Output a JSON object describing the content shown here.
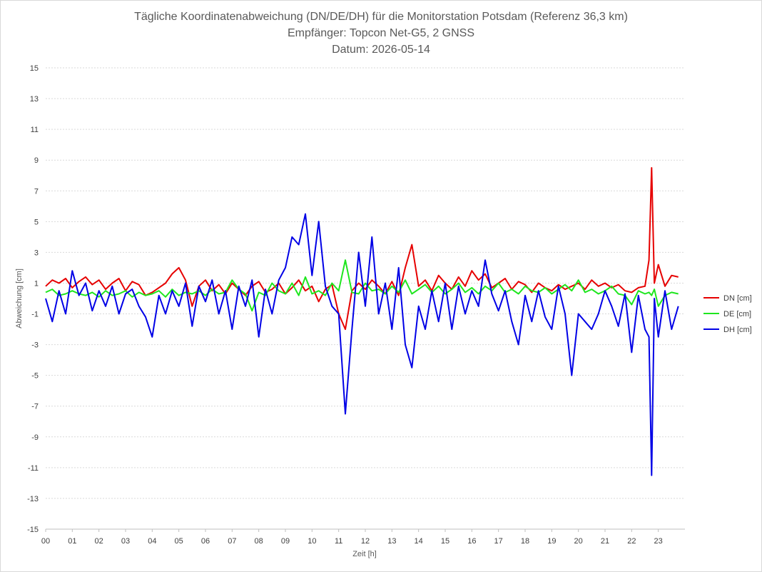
{
  "chart_data": {
    "type": "line",
    "title": "Tägliche Koordinatenabweichung (DN/DE/DH) für die Monitorstation Potsdam (Referenz 36,3 km)",
    "subtitle": "Empfänger: Topcon Net-G5, 2 GNSS",
    "date_line": "Datum: 2026-05-14",
    "xlabel": "Zeit [h]",
    "ylabel": "Abweichung [cm]",
    "xlim": [
      0,
      24
    ],
    "ylim": [
      -15,
      15
    ],
    "x_ticks": [
      "00",
      "01",
      "02",
      "03",
      "04",
      "05",
      "06",
      "07",
      "08",
      "09",
      "10",
      "11",
      "12",
      "13",
      "14",
      "15",
      "16",
      "17",
      "18",
      "19",
      "20",
      "21",
      "22",
      "23"
    ],
    "y_ticks": [
      15,
      13,
      11,
      9,
      7,
      5,
      3,
      1,
      -1,
      -3,
      -5,
      -7,
      -9,
      -11,
      -13,
      -15
    ],
    "grid": true,
    "legend_position": "right",
    "x": [
      0.0,
      0.25,
      0.5,
      0.75,
      1.0,
      1.25,
      1.5,
      1.75,
      2.0,
      2.25,
      2.5,
      2.75,
      3.0,
      3.25,
      3.5,
      3.75,
      4.0,
      4.25,
      4.5,
      4.75,
      5.0,
      5.25,
      5.5,
      5.75,
      6.0,
      6.25,
      6.5,
      6.75,
      7.0,
      7.25,
      7.5,
      7.75,
      8.0,
      8.25,
      8.5,
      8.75,
      9.0,
      9.25,
      9.5,
      9.75,
      10.0,
      10.25,
      10.5,
      10.75,
      11.0,
      11.25,
      11.5,
      11.75,
      12.0,
      12.25,
      12.5,
      12.75,
      13.0,
      13.25,
      13.5,
      13.75,
      14.0,
      14.25,
      14.5,
      14.75,
      15.0,
      15.25,
      15.5,
      15.75,
      16.0,
      16.25,
      16.5,
      16.75,
      17.0,
      17.25,
      17.5,
      17.75,
      18.0,
      18.25,
      18.5,
      18.75,
      19.0,
      19.25,
      19.5,
      19.75,
      20.0,
      20.25,
      20.5,
      20.75,
      21.0,
      21.25,
      21.5,
      21.75,
      22.0,
      22.25,
      22.5,
      22.65,
      22.75,
      22.85,
      23.0,
      23.25,
      23.5,
      23.75
    ],
    "series": [
      {
        "name": "DN [cm]",
        "color": "#e60000",
        "values": [
          0.8,
          1.2,
          1.0,
          1.3,
          0.7,
          1.1,
          1.4,
          0.9,
          1.2,
          0.6,
          1.0,
          1.3,
          0.5,
          1.1,
          0.9,
          0.2,
          0.4,
          0.7,
          1.0,
          1.6,
          2.0,
          1.2,
          -0.5,
          0.8,
          1.2,
          0.5,
          0.9,
          0.3,
          1.0,
          0.6,
          0.2,
          0.8,
          1.1,
          0.4,
          0.6,
          1.0,
          0.3,
          0.7,
          1.2,
          0.5,
          0.8,
          -0.2,
          0.6,
          0.9,
          -1.0,
          -2.0,
          0.5,
          1.0,
          0.6,
          1.2,
          0.8,
          0.3,
          1.1,
          0.2,
          2.0,
          3.5,
          0.8,
          1.2,
          0.5,
          1.5,
          1.0,
          0.6,
          1.4,
          0.8,
          1.8,
          1.2,
          1.6,
          0.7,
          1.0,
          1.3,
          0.6,
          1.1,
          0.9,
          0.4,
          1.0,
          0.7,
          0.5,
          0.9,
          0.6,
          0.8,
          1.0,
          0.6,
          1.2,
          0.8,
          1.0,
          0.7,
          0.9,
          0.5,
          0.4,
          0.7,
          0.8,
          2.5,
          8.5,
          1.0,
          2.2,
          0.8,
          1.5,
          1.4
        ]
      },
      {
        "name": "DE [cm]",
        "color": "#1ee61e",
        "values": [
          0.4,
          0.6,
          0.2,
          0.3,
          0.5,
          0.3,
          0.2,
          0.4,
          0.1,
          0.5,
          0.2,
          0.3,
          0.5,
          0.1,
          0.4,
          0.2,
          0.3,
          0.5,
          0.1,
          0.6,
          0.2,
          0.4,
          0.3,
          0.5,
          0.2,
          0.6,
          0.3,
          0.4,
          1.2,
          0.6,
          0.3,
          -0.8,
          0.4,
          0.2,
          1.0,
          0.5,
          0.3,
          1.0,
          0.2,
          1.4,
          0.3,
          0.5,
          0.2,
          1.0,
          0.5,
          2.5,
          0.4,
          0.3,
          1.0,
          0.5,
          0.6,
          0.3,
          0.8,
          0.4,
          1.2,
          0.3,
          0.6,
          0.9,
          0.4,
          0.8,
          0.3,
          0.6,
          1.0,
          0.4,
          0.7,
          0.3,
          0.8,
          0.5,
          1.0,
          0.4,
          0.6,
          0.3,
          0.8,
          0.5,
          0.4,
          0.7,
          0.3,
          0.6,
          0.9,
          0.5,
          1.2,
          0.4,
          0.6,
          0.3,
          0.5,
          0.8,
          0.3,
          0.2,
          -0.4,
          0.5,
          0.3,
          0.4,
          0.2,
          0.6,
          -0.5,
          0.2,
          0.4,
          0.3
        ]
      },
      {
        "name": "DH [cm]",
        "color": "#0000e6",
        "values": [
          0.0,
          -1.5,
          0.5,
          -1.0,
          1.8,
          0.2,
          1.0,
          -0.8,
          0.5,
          -0.5,
          0.8,
          -1.0,
          0.3,
          0.6,
          -0.5,
          -1.2,
          -2.5,
          0.2,
          -1.0,
          0.5,
          -0.5,
          1.0,
          -1.8,
          0.8,
          -0.2,
          1.2,
          -1.0,
          0.5,
          -2.0,
          0.8,
          -0.5,
          1.2,
          -2.5,
          0.6,
          -1.0,
          1.2,
          2.0,
          4.0,
          3.5,
          5.5,
          1.5,
          5.0,
          0.8,
          -0.5,
          -1.0,
          -7.5,
          -2.0,
          3.0,
          -0.5,
          4.0,
          -1.0,
          1.0,
          -2.0,
          2.0,
          -3.0,
          -4.5,
          -0.5,
          -2.0,
          0.5,
          -1.5,
          1.0,
          -2.0,
          0.8,
          -1.0,
          0.5,
          -0.5,
          2.5,
          0.3,
          -0.8,
          0.5,
          -1.5,
          -3.0,
          0.2,
          -1.5,
          0.5,
          -1.2,
          -2.0,
          0.8,
          -1.0,
          -5.0,
          -1.0,
          -1.5,
          -2.0,
          -1.0,
          0.5,
          -0.5,
          -1.8,
          0.3,
          -3.5,
          0.2,
          -2.0,
          -2.5,
          -11.5,
          0.0,
          -2.5,
          0.5,
          -2.0,
          -0.5
        ]
      }
    ]
  }
}
